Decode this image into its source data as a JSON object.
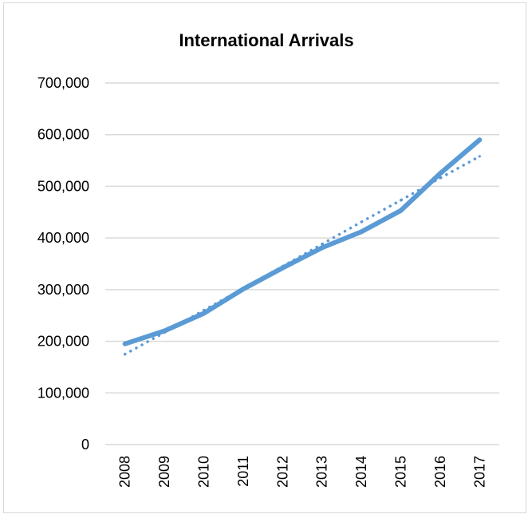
{
  "chart_data": {
    "type": "line",
    "title": "International Arrivals",
    "xlabel": "",
    "ylabel": "",
    "categories": [
      "2008",
      "2009",
      "2010",
      "2011",
      "2012",
      "2013",
      "2014",
      "2015",
      "2016",
      "2017"
    ],
    "ylim": [
      0,
      700000
    ],
    "yticks": [
      0,
      100000,
      200000,
      300000,
      400000,
      500000,
      600000,
      700000
    ],
    "ytick_labels": [
      "0",
      "100,000",
      "200,000",
      "300,000",
      "400,000",
      "500,000",
      "600,000",
      "700,000"
    ],
    "grid": true,
    "legend": "none",
    "series": [
      {
        "style": "solid",
        "color": "#5b9bd5",
        "values": [
          195000,
          220000,
          254000,
          301000,
          342000,
          381000,
          412000,
          453000,
          525000,
          590000
        ]
      },
      {
        "style": "dotted-linear-trendline",
        "color": "#5b9bd5",
        "values": [
          175000,
          217000,
          260000,
          302000,
          345000,
          388000,
          431000,
          473000,
          516000,
          558000
        ]
      }
    ]
  }
}
